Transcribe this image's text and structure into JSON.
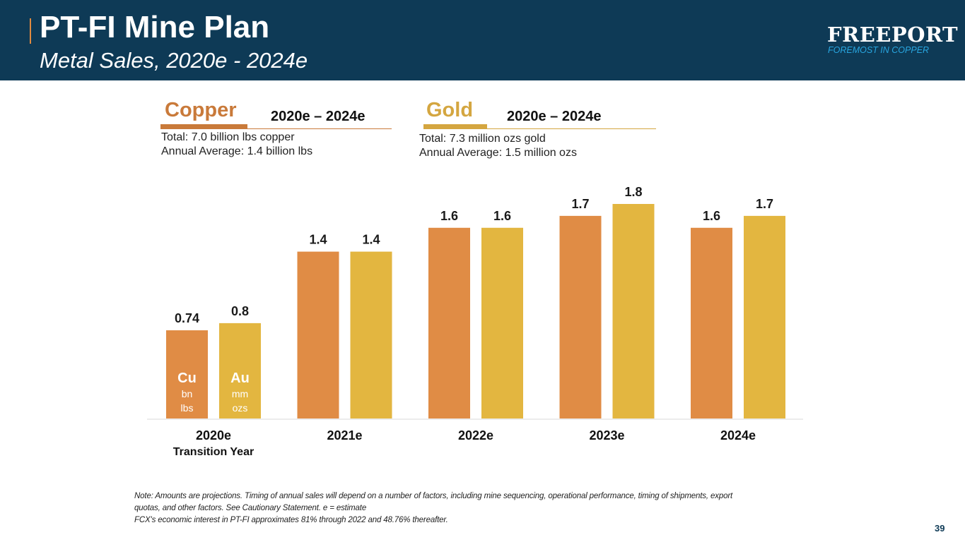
{
  "header": {
    "title": "PT-FI Mine Plan",
    "subtitle": "Metal Sales, 2020e - 2024e",
    "logo_name": "FREEPORT",
    "logo_tagline": "FOREMOST IN COPPER"
  },
  "copper": {
    "name": "Copper",
    "range": "2020e – 2024e",
    "total": "Total: 7.0 billion lbs copper",
    "average": "Annual Average: 1.4 billion lbs"
  },
  "gold": {
    "name": "Gold",
    "range": "2020e – 2024e",
    "total": "Total: 7.3 million ozs gold",
    "average": "Annual Average: 1.5 million ozs"
  },
  "colors": {
    "header_bg": "#0e3a56",
    "copper": "#e08c45",
    "gold": "#e3b640",
    "copper_title": "#c97a3a",
    "gold_title": "#d4a640"
  },
  "chart_data": {
    "type": "bar",
    "categories": [
      "2020e",
      "2021e",
      "2022e",
      "2023e",
      "2024e"
    ],
    "category_sublabels": [
      "Transition Year",
      "",
      "",
      "",
      ""
    ],
    "series": [
      {
        "name": "Cu",
        "unit_lines": [
          "bn",
          "lbs"
        ],
        "values": [
          0.74,
          1.4,
          1.6,
          1.7,
          1.6
        ],
        "labels": [
          "0.74",
          "1.4",
          "1.6",
          "1.7",
          "1.6"
        ]
      },
      {
        "name": "Au",
        "unit_lines": [
          "mm",
          "ozs"
        ],
        "values": [
          0.8,
          1.4,
          1.6,
          1.8,
          1.7
        ],
        "labels": [
          "0.8",
          "1.4",
          "1.6",
          "1.8",
          "1.7"
        ]
      }
    ],
    "ylim": [
      0,
      1.8
    ],
    "grid": false,
    "legend": "inside-first-bars"
  },
  "footnotes": [
    "Note: Amounts are projections. Timing of annual sales will depend on a number of factors, including mine sequencing, operational performance, timing of shipments, export",
    "quotas, and other factors. See Cautionary Statement. e = estimate",
    "FCX's economic interest in PT-FI approximates 81% through 2022 and 48.76% thereafter."
  ],
  "page_number": "39"
}
